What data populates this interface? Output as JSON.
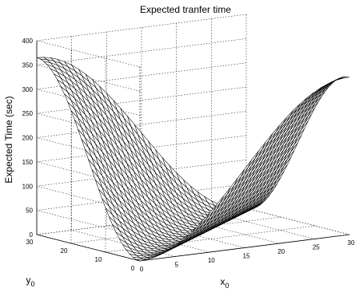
{
  "chart_data": {
    "type": "surface",
    "title": "Expected tranfer time",
    "zlabel": "Expected Time (sec)",
    "xlabel_main": "x",
    "xlabel_sub": "0",
    "ylabel_main": "y",
    "ylabel_sub": "0",
    "xlim": [
      0,
      30
    ],
    "ylim": [
      0,
      30
    ],
    "zlim": [
      0,
      400
    ],
    "x_ticks": [
      0,
      5,
      10,
      15,
      20,
      25,
      30
    ],
    "y_ticks": [
      0,
      10,
      20,
      30
    ],
    "z_ticks": [
      0,
      50,
      100,
      150,
      200,
      250,
      300,
      350,
      400
    ],
    "grid": true,
    "surface": {
      "x_range": [
        0,
        30
      ],
      "y_range": [
        0,
        30
      ],
      "resolution": 31,
      "description_values": {
        "corner_x0_y30": 365,
        "corner_x30_y0": 325,
        "corner_x0_y0": 0,
        "corner_x30_y30": 0
      }
    }
  }
}
